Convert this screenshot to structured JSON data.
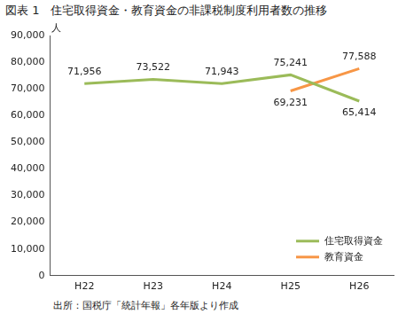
{
  "chart_data": {
    "type": "line",
    "title": "図表 1　住宅取得資金・教育資金の非課税制度利用者数の推移",
    "y_label": "人",
    "source": "出所：国税庁「統計年報」各年版より作成",
    "categories": [
      "H22",
      "H23",
      "H24",
      "H25",
      "H26"
    ],
    "series": [
      {
        "name": "住宅取得資金",
        "color": "#9bbb59",
        "values": [
          71956,
          73522,
          71943,
          75241,
          65414
        ],
        "value_labels": [
          "71,956",
          "73,522",
          "71,943",
          "75,241",
          "65,414"
        ]
      },
      {
        "name": "教育資金",
        "color": "#f79646",
        "values": [
          null,
          null,
          null,
          69231,
          77588
        ],
        "value_labels": [
          null,
          null,
          null,
          "69,231",
          "77,588"
        ]
      }
    ],
    "ylim": [
      0,
      90000
    ],
    "yticks": [
      0,
      {
        "value": 10000,
        "label": "10,000"
      },
      {
        "value": 20000,
        "label": "20,000"
      },
      {
        "value": 30000,
        "label": "30,000"
      },
      {
        "value": 40000,
        "label": "40,000"
      },
      {
        "value": 50000,
        "label": "50,000"
      },
      {
        "value": 60000,
        "label": "60,000"
      },
      {
        "value": 70000,
        "label": "70,000"
      },
      {
        "value": 80000,
        "label": "80,000"
      },
      {
        "value": 90000,
        "label": "90,000"
      }
    ],
    "grid": false,
    "legend": "lower right",
    "data_labels": true
  }
}
